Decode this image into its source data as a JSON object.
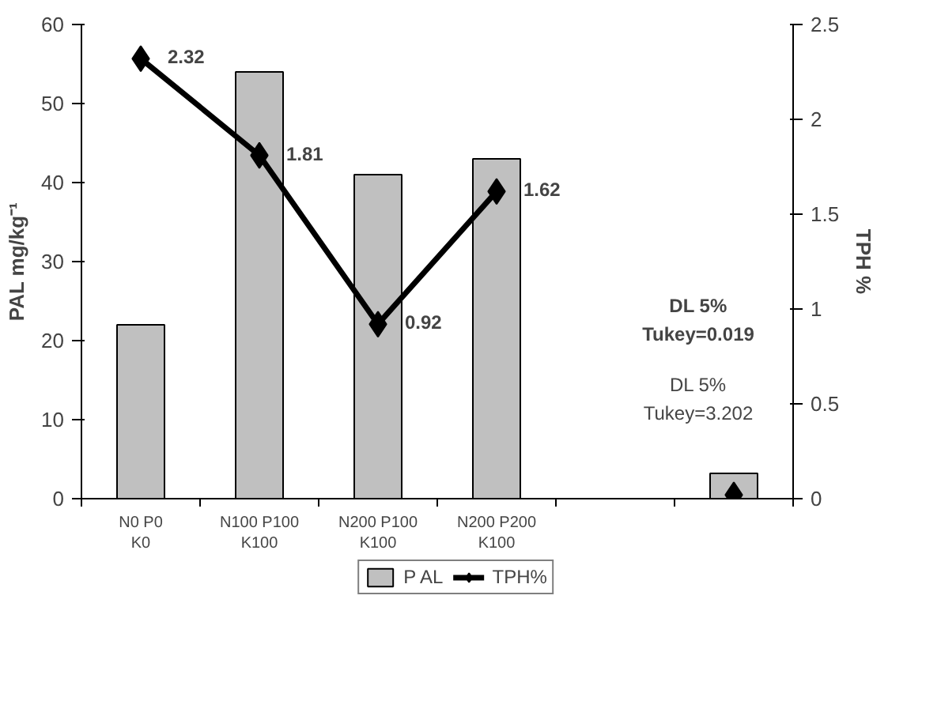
{
  "chart_data": {
    "type": "bar",
    "categories": [
      "N0 P0 K0",
      "N100 P100 K100",
      "N200 P100 K100",
      "N200 P200 K100",
      null,
      null
    ],
    "series": [
      {
        "name": "P AL",
        "color": "#c0c0c0",
        "values": [
          22,
          54,
          41,
          43,
          null,
          3.2
        ]
      },
      {
        "name": "TPH%",
        "type": "line",
        "axis": "y2",
        "color": "#000000",
        "marker": "diamond",
        "values": [
          2.32,
          1.81,
          0.92,
          1.62,
          null,
          0.02
        ],
        "value_labels": [
          "2.32",
          "1.81",
          "0.92",
          "1.62",
          null,
          null
        ]
      }
    ],
    "ylabel": "PAL mg/kg⁻¹",
    "y2label": "TPH %",
    "ylim": [
      0,
      60
    ],
    "yticks": [
      0,
      10,
      20,
      30,
      40,
      50,
      60
    ],
    "y2lim": [
      0,
      2.5
    ],
    "y2ticks": [
      0,
      0.5,
      1,
      1.5,
      2,
      2.5
    ],
    "annotations": [
      "DL 5%\nTukey=0.019",
      "DL 5%\nTukey=3.202"
    ],
    "legend": "bottom",
    "grid": false
  }
}
